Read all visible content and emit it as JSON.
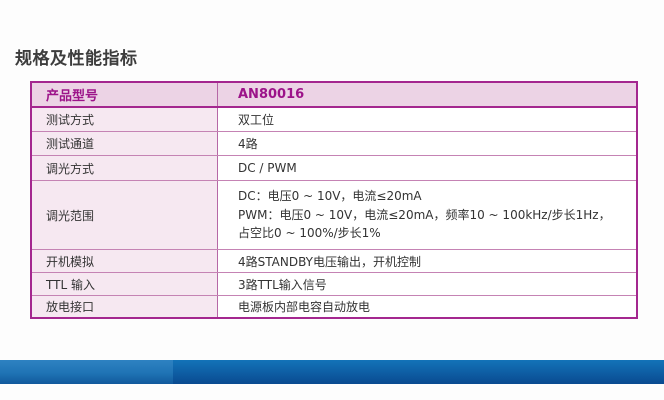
{
  "page": {
    "title": "规格及性能指标"
  },
  "table": {
    "header": {
      "label": "产品型号",
      "value": "AN80016"
    },
    "rows": [
      {
        "label": "测试方式",
        "value": "双工位"
      },
      {
        "label": "测试通道",
        "value": "4路"
      },
      {
        "label": "调光方式",
        "value": "DC / PWM"
      },
      {
        "label": "调光范围",
        "value_lines": [
          "DC：电压0 ~ 10V，电流≤20mA",
          "PWM：电压0 ~ 10V，电流≤20mA，频率10 ~ 100kHz/步长1Hz，",
          "占空比0 ~ 100%/步长1%"
        ]
      },
      {
        "label": "开机模拟",
        "value": "4路STANDBY电压输出，开机控制"
      },
      {
        "label": "TTL 输入",
        "value": "3路TTL输入信号"
      },
      {
        "label": "放电接口",
        "value": "电源板内部电容自动放电"
      }
    ]
  },
  "colors": {
    "accent_magenta": "#a4278f",
    "header_bg": "#ecd3e5",
    "label_cell_bg": "#f6e8f1",
    "header_text": "#9c1389",
    "body_text": "#333333",
    "footer_blue_top": "#1373b8",
    "footer_blue_bottom": "#094a90"
  }
}
